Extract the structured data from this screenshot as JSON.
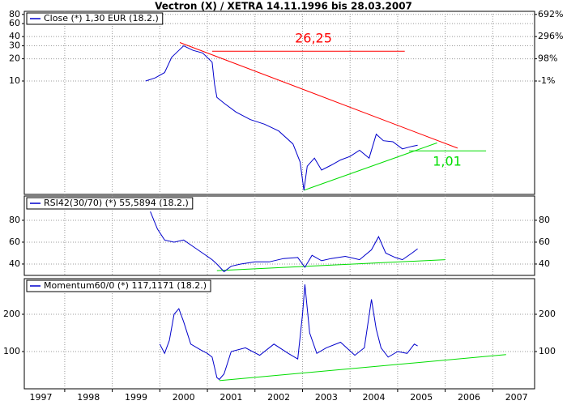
{
  "chart_data": [
    {
      "type": "line",
      "title": "Vectron (X) / XETRA 14.11.1996 bis 28.03.2007",
      "yscale": "log",
      "xlim": [
        1997.15,
        2007.88
      ],
      "ylim": [
        0.29,
        88
      ],
      "yticks": [
        10,
        20,
        30,
        40,
        60,
        80
      ],
      "y2lim": [
        0.29,
        88
      ],
      "y2ticks": [
        {
          "value": 80,
          "label": "692%"
        },
        {
          "value": 40,
          "label": "296%"
        },
        {
          "value": 20,
          "label": "98%"
        },
        {
          "value": 10,
          "label": "-1%"
        }
      ],
      "grid": true,
      "series": [
        {
          "name": "Close (*) 1,30 EUR (18.2.)",
          "color": "#0000cc",
          "x": [
            1999.7,
            1999.9,
            2000.1,
            2000.25,
            2000.4,
            2000.5,
            2000.7,
            2000.9,
            2001.1,
            2001.15,
            2001.2,
            2001.35,
            2001.6,
            2001.9,
            2002.2,
            2002.5,
            2002.8,
            2002.95,
            2003.03,
            2003.1,
            2003.25,
            2003.4,
            2003.6,
            2003.8,
            2004.0,
            2004.2,
            2004.4,
            2004.55,
            2004.7,
            2004.9,
            2005.1,
            2005.3,
            2005.42
          ],
          "values": [
            10,
            11,
            13,
            21,
            26,
            30,
            26,
            24,
            18,
            9,
            6,
            5,
            3.8,
            3,
            2.6,
            2.1,
            1.4,
            0.8,
            0.33,
            0.7,
            0.9,
            0.62,
            0.72,
            0.85,
            0.95,
            1.15,
            0.9,
            1.9,
            1.55,
            1.5,
            1.2,
            1.3,
            1.35
          ]
        }
      ],
      "trendlines": [
        {
          "color": "#ff0000",
          "x": [
            2000.42,
            2006.26
          ],
          "values": [
            33.2,
            1.23
          ]
        },
        {
          "color": "#ff0000",
          "x": [
            2001.1,
            2005.15
          ],
          "values": [
            25.3,
            25.3
          ]
        },
        {
          "color": "#00dd00",
          "x": [
            2003.03,
            2005.83
          ],
          "values": [
            0.33,
            1.45
          ]
        },
        {
          "color": "#00dd00",
          "x": [
            2005.24,
            2006.86
          ],
          "values": [
            1.13,
            1.13
          ]
        }
      ],
      "annotations": [
        {
          "text": "26,25",
          "color": "#ff0000"
        },
        {
          "text": "1,01",
          "color": "#00dd00"
        }
      ]
    },
    {
      "type": "line",
      "xlim": [
        1997.15,
        2007.88
      ],
      "ylim": [
        29.6,
        102.2
      ],
      "yticks": [
        40,
        60,
        80
      ],
      "grid": true,
      "series": [
        {
          "name": "RSI42(30/70) (*) 55,5894 (18.2.)",
          "color": "#0000cc",
          "x": [
            1999.8,
            1999.95,
            2000.1,
            2000.3,
            2000.5,
            2000.7,
            2000.9,
            2001.1,
            2001.2,
            2001.35,
            2001.5,
            2001.7,
            2002.0,
            2002.3,
            2002.6,
            2002.9,
            2003.05,
            2003.2,
            2003.4,
            2003.6,
            2003.9,
            2004.2,
            2004.45,
            2004.6,
            2004.75,
            2004.95,
            2005.1,
            2005.3,
            2005.42
          ],
          "values": [
            88,
            72,
            62,
            60,
            62,
            56,
            50,
            44,
            40,
            33,
            38,
            40,
            42,
            42,
            45,
            46,
            37,
            48,
            43,
            45,
            47,
            44,
            53,
            65,
            50,
            46,
            44,
            50,
            54
          ]
        }
      ],
      "trendlines": [
        {
          "color": "#00dd00",
          "x": [
            2001.2,
            2006.0
          ],
          "values": [
            34,
            44
          ]
        }
      ]
    },
    {
      "type": "line",
      "xlim": [
        1997.15,
        2007.88
      ],
      "ylim": [
        0,
        295.7
      ],
      "yticks": [
        100,
        200
      ],
      "grid": true,
      "xticks": [
        1997,
        1998,
        1999,
        2000,
        2001,
        2002,
        2003,
        2004,
        2005,
        2006,
        2007
      ],
      "series": [
        {
          "name": "Momentum60/0 (*) 117,1171 (18.2.)",
          "color": "#0000cc",
          "x": [
            2000.0,
            2000.1,
            2000.2,
            2000.3,
            2000.4,
            2000.5,
            2000.65,
            2000.85,
            2001.0,
            2001.1,
            2001.2,
            2001.25,
            2001.35,
            2001.5,
            2001.8,
            2002.1,
            2002.4,
            2002.7,
            2002.9,
            2003.0,
            2003.05,
            2003.15,
            2003.3,
            2003.5,
            2003.8,
            2004.1,
            2004.3,
            2004.45,
            2004.55,
            2004.65,
            2004.8,
            2005.0,
            2005.2,
            2005.35,
            2005.42
          ],
          "values": [
            120,
            95,
            130,
            200,
            215,
            180,
            120,
            105,
            95,
            85,
            30,
            25,
            40,
            100,
            110,
            90,
            120,
            95,
            80,
            200,
            280,
            150,
            95,
            110,
            125,
            90,
            110,
            240,
            160,
            110,
            85,
            100,
            95,
            120,
            115
          ]
        }
      ],
      "trendlines": [
        {
          "color": "#00dd00",
          "x": [
            2001.25,
            2007.28
          ],
          "values": [
            22,
            92
          ]
        }
      ]
    }
  ]
}
